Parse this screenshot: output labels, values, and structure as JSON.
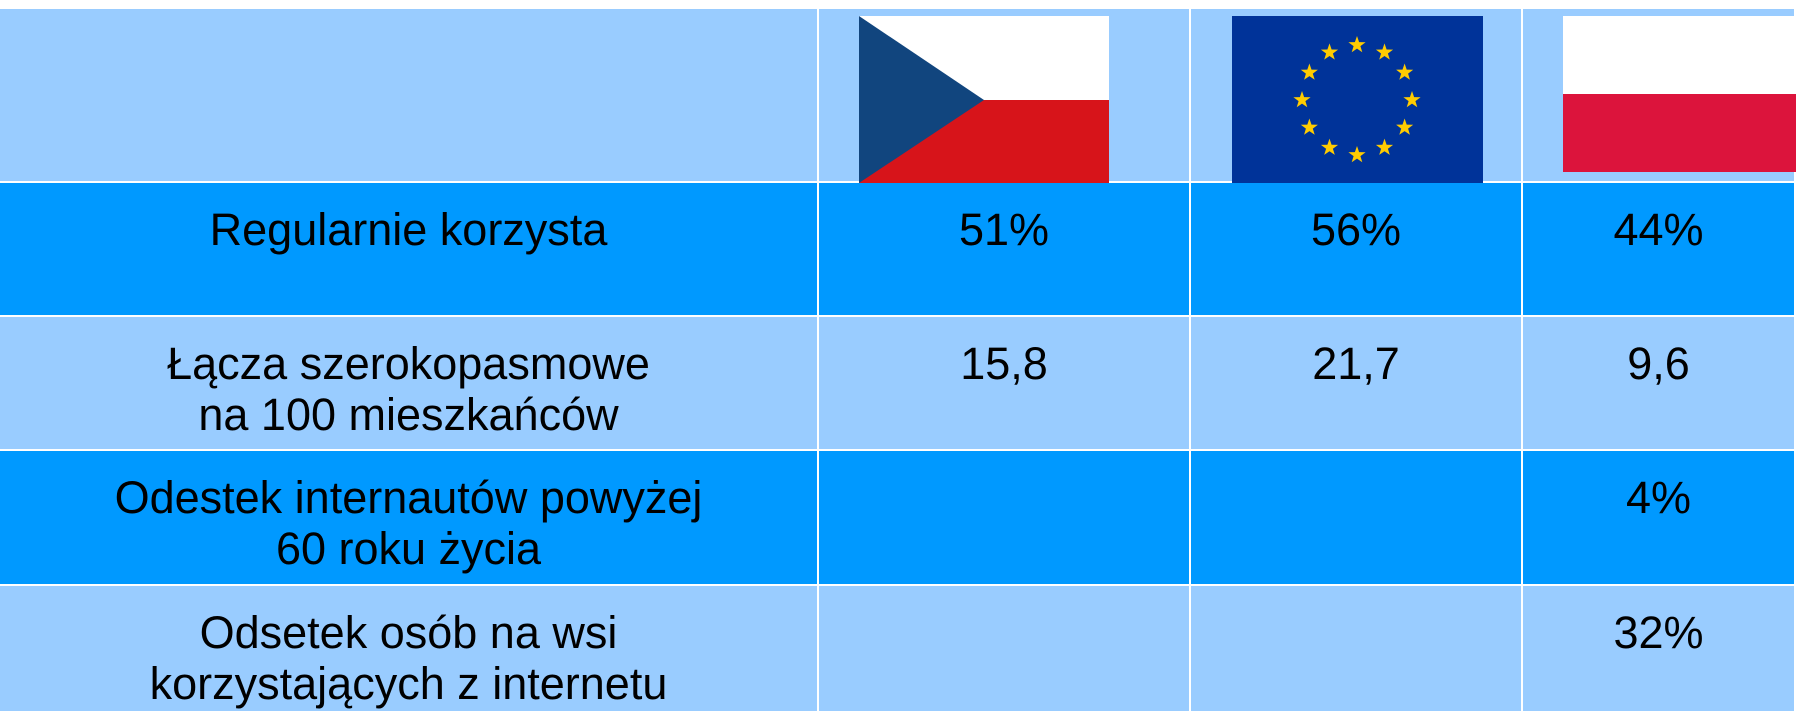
{
  "table": {
    "rows": [
      {
        "label": [
          "Regularnie korzysta"
        ],
        "cells": [
          "51%",
          "56%",
          "44%"
        ]
      },
      {
        "label": [
          "Łącza szerokopasmowe",
          "na 100 mieszkańców"
        ],
        "cells": [
          "15,8",
          "21,7",
          "9,6"
        ]
      },
      {
        "label": [
          "Odestek internautów powyżej",
          "60 roku życia"
        ],
        "cells": [
          null,
          null,
          "4%"
        ]
      },
      {
        "label": [
          "Odsetek osób na wsi",
          "korzystających z internetu"
        ],
        "cells": [
          null,
          null,
          "32%"
        ]
      }
    ]
  }
}
